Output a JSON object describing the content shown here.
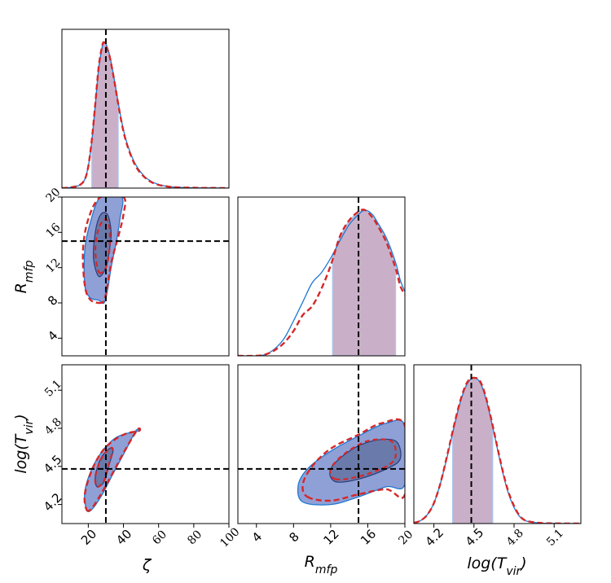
{
  "chart_data": {
    "type": "corner",
    "truth": {
      "zeta": 30,
      "rmfp": 15,
      "logtvir": 4.48
    },
    "colors": {
      "model_a": "#1f78d1",
      "model_a_fill": "#8fa0d6",
      "model_a_inner": "#5a6a99",
      "model_b": "#d62728",
      "shade": "#c9b0c8",
      "shade_edge": "#a9c8f0"
    },
    "params": [
      {
        "key": "zeta",
        "label": "ζ",
        "range": [
          5,
          100
        ],
        "ticks": [
          {
            "v": 20,
            "text": "20"
          },
          {
            "v": 40,
            "text": "40"
          },
          {
            "v": 60,
            "text": "60"
          },
          {
            "v": 80,
            "text": "80"
          },
          {
            "v": 100,
            "text": "100"
          }
        ]
      },
      {
        "key": "rmfp",
        "label": "R_mfp",
        "range": [
          2,
          20
        ],
        "ticks": [
          {
            "v": 4,
            "text": "4"
          },
          {
            "v": 8,
            "text": "8"
          },
          {
            "v": 12,
            "text": "12"
          },
          {
            "v": 16,
            "text": "16"
          },
          {
            "v": 20,
            "text": "20"
          }
        ]
      },
      {
        "key": "logtvir",
        "label": "log(T_vir)",
        "range": [
          4.05,
          5.3
        ],
        "ticks": [
          {
            "v": 4.2,
            "text": "4.2"
          },
          {
            "v": 4.5,
            "text": "4.5"
          },
          {
            "v": 4.8,
            "text": "4.8"
          },
          {
            "v": 5.1,
            "text": "5.1"
          }
        ]
      }
    ],
    "marginals": {
      "zeta": {
        "x": [
          5,
          10,
          15,
          18,
          20,
          22,
          24,
          26,
          28,
          29,
          30,
          32,
          34,
          36,
          38,
          40,
          42,
          45,
          48,
          52,
          56,
          60,
          65,
          70,
          80,
          90,
          100
        ],
        "a": [
          0,
          0.005,
          0.02,
          0.06,
          0.15,
          0.32,
          0.57,
          0.83,
          0.97,
          1.0,
          0.99,
          0.92,
          0.8,
          0.66,
          0.52,
          0.4,
          0.31,
          0.21,
          0.14,
          0.08,
          0.045,
          0.025,
          0.012,
          0.006,
          0.002,
          0.001,
          0
        ],
        "b": [
          0,
          0.005,
          0.02,
          0.06,
          0.15,
          0.33,
          0.58,
          0.84,
          0.98,
          1.0,
          0.98,
          0.91,
          0.79,
          0.65,
          0.51,
          0.39,
          0.3,
          0.2,
          0.13,
          0.075,
          0.04,
          0.022,
          0.011,
          0.005,
          0.002,
          0.001,
          0
        ],
        "shade": [
          22,
          37
        ]
      },
      "rmfp": {
        "x": [
          2,
          4,
          5,
          6,
          7,
          8,
          9,
          10,
          11,
          12,
          13,
          14,
          15,
          15.7,
          16.5,
          17,
          18,
          19,
          19.5,
          20
        ],
        "a": [
          0,
          0,
          0.01,
          0.05,
          0.12,
          0.24,
          0.37,
          0.5,
          0.57,
          0.67,
          0.79,
          0.9,
          0.97,
          1.0,
          0.97,
          0.92,
          0.81,
          0.64,
          0.52,
          0.44
        ],
        "b": [
          0,
          0,
          0.01,
          0.04,
          0.09,
          0.17,
          0.28,
          0.34,
          0.46,
          0.62,
          0.82,
          0.93,
          0.99,
          1.0,
          0.95,
          0.9,
          0.78,
          0.6,
          0.48,
          0.42
        ],
        "shade": [
          12.2,
          19
        ]
      },
      "logtvir": {
        "x": [
          4.05,
          4.1,
          4.15,
          4.2,
          4.25,
          4.3,
          4.35,
          4.4,
          4.45,
          4.5,
          4.55,
          4.6,
          4.65,
          4.7,
          4.75,
          4.8,
          4.85,
          4.9,
          5.0,
          5.1,
          5.3
        ],
        "a": [
          0.005,
          0.02,
          0.06,
          0.14,
          0.28,
          0.46,
          0.66,
          0.84,
          0.96,
          1.0,
          0.96,
          0.82,
          0.62,
          0.41,
          0.23,
          0.11,
          0.04,
          0.015,
          0.003,
          0.001,
          0
        ],
        "b": [
          0.005,
          0.02,
          0.06,
          0.14,
          0.28,
          0.47,
          0.67,
          0.85,
          0.97,
          1.0,
          0.97,
          0.83,
          0.63,
          0.42,
          0.24,
          0.12,
          0.045,
          0.017,
          0.004,
          0.001,
          0
        ],
        "shade": [
          4.34,
          4.64
        ]
      }
    },
    "contours": {
      "zeta_rmfp": {
        "outer_a": [
          [
            26,
            8.3
          ],
          [
            29,
            8.0
          ],
          [
            31,
            9.5
          ],
          [
            33,
            12
          ],
          [
            36,
            15
          ],
          [
            38,
            17.5
          ],
          [
            39,
            20
          ],
          [
            27,
            20
          ],
          [
            21,
            17
          ],
          [
            18,
            14
          ],
          [
            18,
            10
          ],
          [
            21,
            8.6
          ]
        ],
        "outer_b": [
          [
            26,
            8.0
          ],
          [
            29,
            8.3
          ],
          [
            31,
            10
          ],
          [
            33,
            12.5
          ],
          [
            37,
            15.5
          ],
          [
            40,
            18
          ],
          [
            40,
            20
          ],
          [
            27,
            20
          ],
          [
            20,
            17.5
          ],
          [
            17,
            14
          ],
          [
            18,
            10
          ],
          [
            21,
            8.4
          ]
        ],
        "inner_a": [
          [
            26,
            11
          ],
          [
            30,
            12
          ],
          [
            32,
            14
          ],
          [
            33,
            16
          ],
          [
            31,
            18
          ],
          [
            27,
            18
          ],
          [
            24,
            16
          ],
          [
            23,
            13
          ]
        ],
        "inner_b": [
          [
            26,
            11.5
          ],
          [
            30,
            12
          ],
          [
            32,
            14
          ],
          [
            32,
            16.5
          ],
          [
            30,
            17.5
          ],
          [
            26,
            16.5
          ],
          [
            24,
            14
          ]
        ]
      },
      "zeta_logtvir": {
        "outer_a": [
          [
            19,
            4.16
          ],
          [
            22,
            4.16
          ],
          [
            28,
            4.28
          ],
          [
            34,
            4.44
          ],
          [
            41,
            4.62
          ],
          [
            47,
            4.78
          ],
          [
            49,
            4.78
          ],
          [
            42,
            4.76
          ],
          [
            35,
            4.72
          ],
          [
            28,
            4.62
          ],
          [
            22,
            4.48
          ],
          [
            18,
            4.3
          ]
        ],
        "outer_b": [
          [
            19,
            4.16
          ],
          [
            22,
            4.17
          ],
          [
            28,
            4.3
          ],
          [
            34,
            4.45
          ],
          [
            41,
            4.63
          ],
          [
            48,
            4.79
          ],
          [
            49,
            4.78
          ],
          [
            42,
            4.76
          ],
          [
            35,
            4.71
          ],
          [
            28,
            4.62
          ],
          [
            22,
            4.47
          ],
          [
            18,
            4.28
          ]
        ],
        "inner_a": [
          [
            25,
            4.34
          ],
          [
            29,
            4.38
          ],
          [
            32,
            4.52
          ],
          [
            34,
            4.62
          ],
          [
            32,
            4.64
          ],
          [
            27,
            4.56
          ],
          [
            24,
            4.42
          ]
        ],
        "inner_b": [
          [
            25,
            4.34
          ],
          [
            29,
            4.39
          ],
          [
            32,
            4.53
          ],
          [
            34,
            4.63
          ],
          [
            32,
            4.64
          ],
          [
            27,
            4.55
          ],
          [
            24,
            4.42
          ]
        ]
      },
      "rmfp_logtvir": {
        "outer_a": [
          [
            9,
            4.22
          ],
          [
            12,
            4.2
          ],
          [
            15,
            4.26
          ],
          [
            18,
            4.34
          ],
          [
            20,
            4.36
          ],
          [
            20,
            4.82
          ],
          [
            18,
            4.84
          ],
          [
            15,
            4.74
          ],
          [
            12,
            4.62
          ],
          [
            9.5,
            4.48
          ],
          [
            8.5,
            4.35
          ]
        ],
        "outer_b": [
          [
            9.5,
            4.26
          ],
          [
            12,
            4.23
          ],
          [
            15,
            4.28
          ],
          [
            18,
            4.32
          ],
          [
            20,
            4.28
          ],
          [
            20,
            4.82
          ],
          [
            17.5,
            4.84
          ],
          [
            15,
            4.75
          ],
          [
            12,
            4.64
          ],
          [
            10,
            4.5
          ],
          [
            9,
            4.36
          ]
        ],
        "inner_a": [
          [
            12.5,
            4.38
          ],
          [
            15,
            4.4
          ],
          [
            18,
            4.48
          ],
          [
            19.5,
            4.56
          ],
          [
            19,
            4.7
          ],
          [
            16.5,
            4.7
          ],
          [
            14,
            4.62
          ],
          [
            12,
            4.48
          ]
        ],
        "inner_b": [
          [
            12.5,
            4.4
          ],
          [
            15,
            4.42
          ],
          [
            18,
            4.5
          ],
          [
            19,
            4.58
          ],
          [
            18.5,
            4.7
          ],
          [
            16,
            4.7
          ],
          [
            13.5,
            4.6
          ],
          [
            12,
            4.48
          ]
        ]
      }
    }
  }
}
